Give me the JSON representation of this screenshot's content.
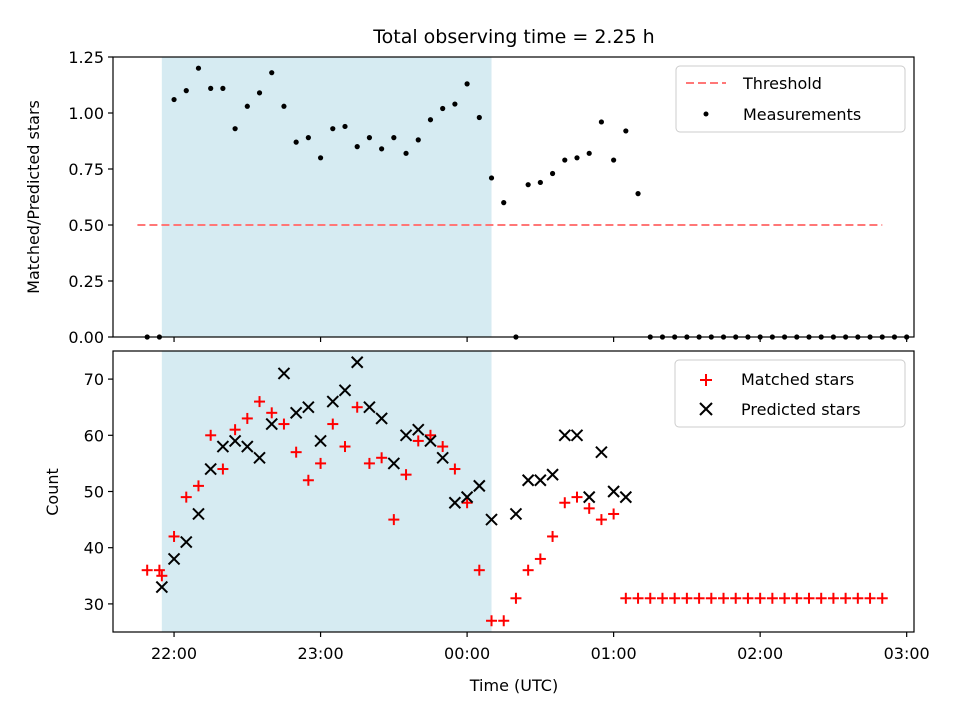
{
  "figure": {
    "title": "Total observing time = 2.25 h",
    "xlabel": "Time (UTC)",
    "x_ticks": [
      "22:00",
      "23:00",
      "00:00",
      "01:00",
      "02:00",
      "03:00"
    ]
  },
  "chart_data": [
    {
      "type": "scatter",
      "ylabel": "Matched/Predicted stars",
      "xlim": [
        "21:35",
        "03:03"
      ],
      "ylim": [
        0,
        1.25
      ],
      "y_ticks": [
        "0.00",
        "0.25",
        "0.50",
        "0.75",
        "1.00",
        "1.25"
      ],
      "shaded_interval": [
        "21:55",
        "00:10"
      ],
      "colors": {
        "threshold": "#ff7777",
        "measurements": "#000000",
        "shade": "#add8e6"
      },
      "legend": {
        "position": "top-right",
        "threshold_label": "Threshold",
        "measurements_label": "Measurements"
      },
      "threshold": {
        "value": 0.5,
        "x_start": "21:45",
        "x_end": "02:50"
      },
      "measurements": [
        [
          "21:49",
          0
        ],
        [
          "21:54",
          0
        ],
        [
          "22:00",
          1.06
        ],
        [
          "22:05",
          1.1
        ],
        [
          "22:10",
          1.2
        ],
        [
          "22:15",
          1.11
        ],
        [
          "22:20",
          1.11
        ],
        [
          "22:25",
          0.93
        ],
        [
          "22:30",
          1.03
        ],
        [
          "22:35",
          1.09
        ],
        [
          "22:40",
          1.18
        ],
        [
          "22:45",
          1.03
        ],
        [
          "22:50",
          0.87
        ],
        [
          "22:55",
          0.89
        ],
        [
          "23:00",
          0.8
        ],
        [
          "23:05",
          0.93
        ],
        [
          "23:10",
          0.94
        ],
        [
          "23:15",
          0.85
        ],
        [
          "23:20",
          0.89
        ],
        [
          "23:25",
          0.84
        ],
        [
          "23:30",
          0.89
        ],
        [
          "23:35",
          0.82
        ],
        [
          "23:40",
          0.88
        ],
        [
          "23:45",
          0.97
        ],
        [
          "23:50",
          1.02
        ],
        [
          "23:55",
          1.04
        ],
        [
          "00:00",
          1.13
        ],
        [
          "00:05",
          0.98
        ],
        [
          "00:10",
          0.71
        ],
        [
          "00:15",
          0.6
        ],
        [
          "00:20",
          0
        ],
        [
          "00:25",
          0.68
        ],
        [
          "00:30",
          0.69
        ],
        [
          "00:35",
          0.73
        ],
        [
          "00:40",
          0.79
        ],
        [
          "00:45",
          0.8
        ],
        [
          "00:50",
          0.82
        ],
        [
          "00:55",
          0.96
        ],
        [
          "01:00",
          0.79
        ],
        [
          "01:05",
          0.92
        ],
        [
          "01:10",
          0.64
        ],
        [
          "01:15",
          0
        ],
        [
          "01:20",
          0
        ],
        [
          "01:25",
          0
        ],
        [
          "01:30",
          0
        ],
        [
          "01:35",
          0
        ],
        [
          "01:40",
          0
        ],
        [
          "01:45",
          0
        ],
        [
          "01:50",
          0
        ],
        [
          "01:55",
          0
        ],
        [
          "02:00",
          0
        ],
        [
          "02:05",
          0
        ],
        [
          "02:10",
          0
        ],
        [
          "02:15",
          0
        ],
        [
          "02:20",
          0
        ],
        [
          "02:25",
          0
        ],
        [
          "02:30",
          0
        ],
        [
          "02:35",
          0
        ],
        [
          "02:40",
          0
        ],
        [
          "02:45",
          0
        ],
        [
          "02:50",
          0
        ],
        [
          "02:55",
          0
        ],
        [
          "03:00",
          0
        ]
      ]
    },
    {
      "type": "scatter",
      "ylabel": "Count",
      "xlim": [
        "21:35",
        "03:03"
      ],
      "ylim": [
        25,
        75
      ],
      "y_ticks": [
        "30",
        "40",
        "50",
        "60",
        "70"
      ],
      "shaded_interval": [
        "21:55",
        "00:10"
      ],
      "colors": {
        "matched": "#ff0000",
        "predicted": "#000000",
        "shade": "#add8e6"
      },
      "legend": {
        "position": "top-right",
        "matched_label": "Matched stars",
        "predicted_label": "Predicted stars"
      },
      "series": [
        {
          "name": "Matched stars",
          "marker": "plus",
          "points": [
            [
              "21:49",
              36
            ],
            [
              "21:54",
              36
            ],
            [
              "21:55",
              35
            ],
            [
              "22:00",
              42
            ],
            [
              "22:05",
              49
            ],
            [
              "22:10",
              51
            ],
            [
              "22:15",
              60
            ],
            [
              "22:20",
              54
            ],
            [
              "22:25",
              61
            ],
            [
              "22:30",
              63
            ],
            [
              "22:35",
              66
            ],
            [
              "22:40",
              64
            ],
            [
              "22:45",
              62
            ],
            [
              "22:50",
              57
            ],
            [
              "22:55",
              52
            ],
            [
              "23:00",
              55
            ],
            [
              "23:05",
              62
            ],
            [
              "23:10",
              58
            ],
            [
              "23:15",
              65
            ],
            [
              "23:20",
              55
            ],
            [
              "23:25",
              56
            ],
            [
              "23:30",
              45
            ],
            [
              "23:35",
              53
            ],
            [
              "23:40",
              59
            ],
            [
              "23:45",
              60
            ],
            [
              "23:50",
              58
            ],
            [
              "23:55",
              54
            ],
            [
              "00:00",
              48
            ],
            [
              "00:05",
              36
            ],
            [
              "00:10",
              27
            ],
            [
              "00:15",
              27
            ],
            [
              "00:20",
              31
            ],
            [
              "00:25",
              36
            ],
            [
              "00:30",
              38
            ],
            [
              "00:35",
              42
            ],
            [
              "00:40",
              48
            ],
            [
              "00:45",
              49
            ],
            [
              "00:50",
              47
            ],
            [
              "00:55",
              45
            ],
            [
              "01:00",
              46
            ],
            [
              "01:05",
              31
            ],
            [
              "01:10",
              31
            ],
            [
              "01:15",
              31
            ],
            [
              "01:20",
              31
            ],
            [
              "01:25",
              31
            ],
            [
              "01:30",
              31
            ],
            [
              "01:35",
              31
            ],
            [
              "01:40",
              31
            ],
            [
              "01:45",
              31
            ],
            [
              "01:50",
              31
            ],
            [
              "01:55",
              31
            ],
            [
              "02:00",
              31
            ],
            [
              "02:05",
              31
            ],
            [
              "02:10",
              31
            ],
            [
              "02:15",
              31
            ],
            [
              "02:20",
              31
            ],
            [
              "02:25",
              31
            ],
            [
              "02:30",
              31
            ],
            [
              "02:35",
              31
            ],
            [
              "02:40",
              31
            ],
            [
              "02:45",
              31
            ],
            [
              "02:50",
              31
            ]
          ]
        },
        {
          "name": "Predicted stars",
          "marker": "x",
          "points": [
            [
              "21:55",
              33
            ],
            [
              "22:00",
              38
            ],
            [
              "22:05",
              41
            ],
            [
              "22:10",
              46
            ],
            [
              "22:15",
              54
            ],
            [
              "22:20",
              58
            ],
            [
              "22:25",
              59
            ],
            [
              "22:30",
              58
            ],
            [
              "22:35",
              56
            ],
            [
              "22:40",
              62
            ],
            [
              "22:45",
              71
            ],
            [
              "22:50",
              64
            ],
            [
              "22:55",
              65
            ],
            [
              "23:00",
              59
            ],
            [
              "23:05",
              66
            ],
            [
              "23:10",
              68
            ],
            [
              "23:15",
              73
            ],
            [
              "23:20",
              65
            ],
            [
              "23:25",
              63
            ],
            [
              "23:30",
              55
            ],
            [
              "23:35",
              60
            ],
            [
              "23:40",
              61
            ],
            [
              "23:45",
              59
            ],
            [
              "23:50",
              56
            ],
            [
              "23:55",
              48
            ],
            [
              "00:00",
              49
            ],
            [
              "00:05",
              51
            ],
            [
              "00:10",
              45
            ],
            [
              "00:20",
              46
            ],
            [
              "00:25",
              52
            ],
            [
              "00:30",
              52
            ],
            [
              "00:35",
              53
            ],
            [
              "00:40",
              60
            ],
            [
              "00:45",
              60
            ],
            [
              "00:50",
              49
            ],
            [
              "00:55",
              57
            ],
            [
              "01:00",
              50
            ],
            [
              "01:05",
              49
            ]
          ]
        }
      ]
    }
  ]
}
